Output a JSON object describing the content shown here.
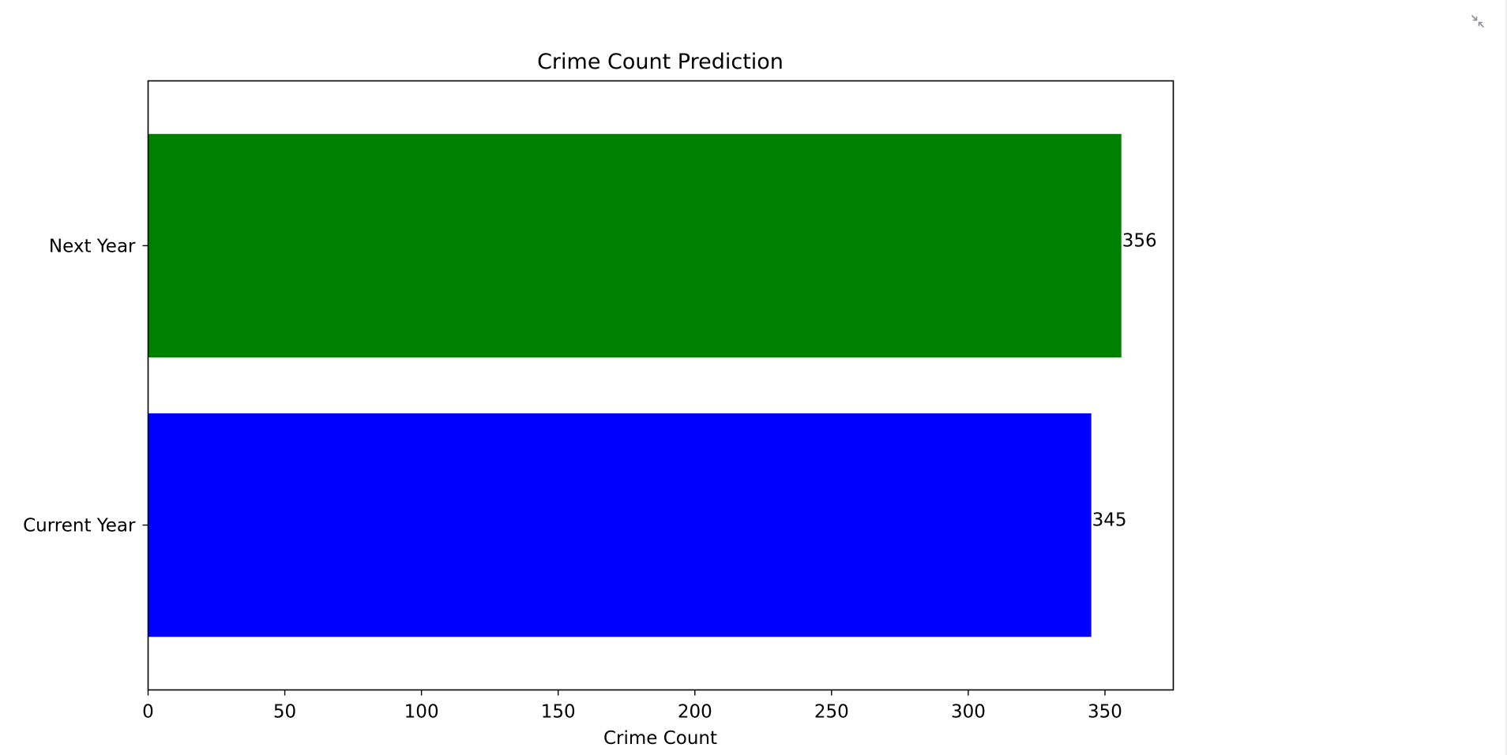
{
  "toolbar": {
    "collapse_icon": "collapse-arrows-icon"
  },
  "colors": {
    "current_year_bar": "#0000ff",
    "next_year_bar": "#008000",
    "axes": "#000000",
    "icon": "#8a8f98"
  },
  "chart_data": {
    "type": "bar",
    "orientation": "horizontal",
    "title": "Crime Count Prediction",
    "xlabel": "Crime Count",
    "ylabel": "",
    "categories": [
      "Current Year",
      "Next Year"
    ],
    "values": [
      345,
      356
    ],
    "value_labels": [
      "345",
      "356"
    ],
    "bar_colors": [
      "#0000ff",
      "#008000"
    ],
    "xlim": [
      0,
      375
    ],
    "xticks": [
      0,
      50,
      100,
      150,
      200,
      250,
      300,
      350
    ],
    "xtick_labels": [
      "0",
      "50",
      "100",
      "150",
      "200",
      "250",
      "300",
      "350"
    ],
    "grid": false,
    "legend": "none"
  }
}
